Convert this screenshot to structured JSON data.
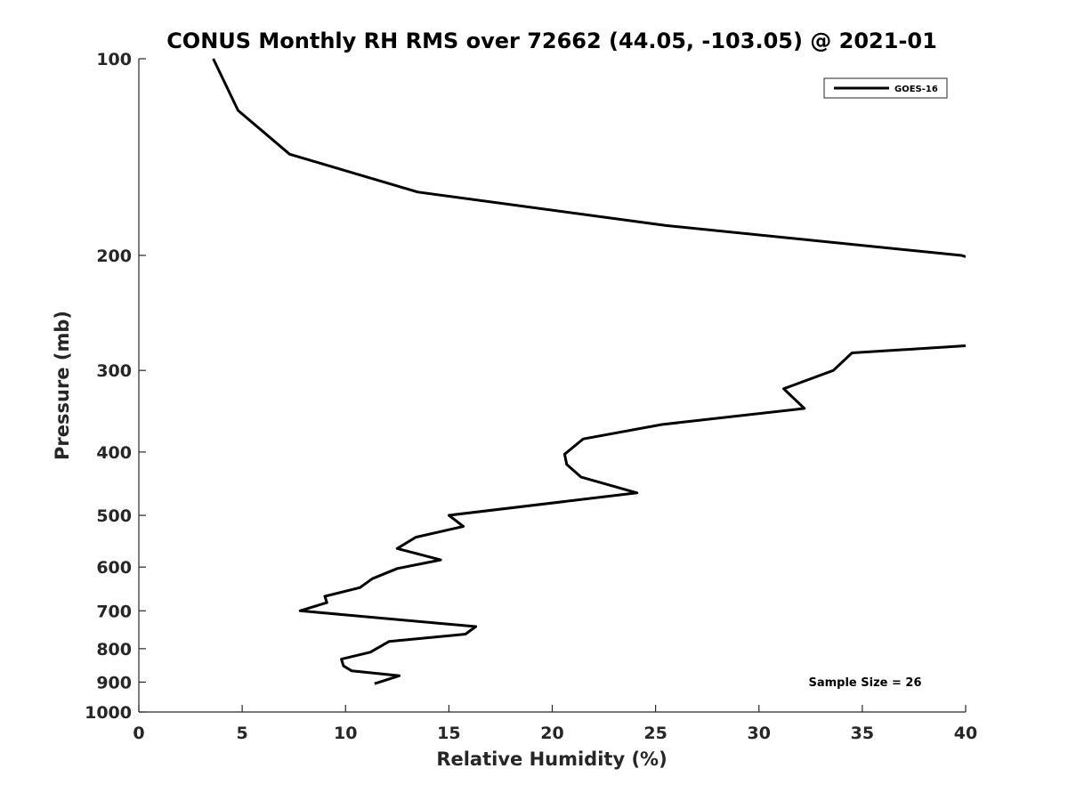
{
  "chart_data": {
    "type": "line",
    "title": "CONUS Monthly RH RMS over 72662 (44.05, -103.05) @ 2021-01",
    "xlabel": "Relative Humidity (%)",
    "ylabel": "Pressure (mb)",
    "xlim": [
      0,
      40
    ],
    "ylim": [
      100,
      1000
    ],
    "y_scale": "log",
    "y_reversed": true,
    "x_ticks": [
      "0",
      "5",
      "10",
      "15",
      "20",
      "25",
      "30",
      "35",
      "40"
    ],
    "y_ticks": [
      "100",
      "200",
      "300",
      "400",
      "500",
      "600",
      "700",
      "800",
      "900",
      "1000"
    ],
    "grid": false,
    "legend": {
      "location": "top-right",
      "entries": [
        "GOES-16"
      ]
    },
    "annotation": "Sample Size = 26",
    "colors": {
      "series": "#000000",
      "axes": "#262626"
    },
    "series": [
      {
        "name": "GOES-16",
        "segments": [
          [
            [
              3.6,
              100
            ],
            [
              4.8,
              120
            ],
            [
              7.3,
              140
            ],
            [
              13.5,
              160
            ],
            [
              25.5,
              180
            ],
            [
              39.8,
              200
            ],
            [
              40,
              201
            ]
          ],
          [
            [
              40,
              275
            ],
            [
              34.5,
              282
            ],
            [
              33.6,
              300
            ],
            [
              31.2,
              320
            ],
            [
              32.2,
              343
            ],
            [
              25.3,
              363
            ],
            [
              21.5,
              382
            ],
            [
              20.6,
              403
            ],
            [
              20.7,
              418
            ],
            [
              21.4,
              437
            ],
            [
              24.1,
              462
            ],
            [
              15.0,
              500
            ],
            [
              15.7,
              520
            ],
            [
              13.4,
              540
            ],
            [
              12.5,
              562
            ],
            [
              14.6,
              585
            ],
            [
              12.5,
              603
            ],
            [
              11.3,
              625
            ],
            [
              10.7,
              645
            ],
            [
              9.0,
              665
            ],
            [
              9.1,
              680
            ],
            [
              7.8,
              700
            ],
            [
              16.3,
              740
            ],
            [
              15.8,
              760
            ],
            [
              12.1,
              780
            ],
            [
              11.2,
              810
            ],
            [
              9.8,
              830
            ],
            [
              9.9,
              850
            ],
            [
              10.3,
              865
            ],
            [
              12.6,
              880
            ],
            [
              11.4,
              905
            ]
          ]
        ]
      }
    ]
  }
}
